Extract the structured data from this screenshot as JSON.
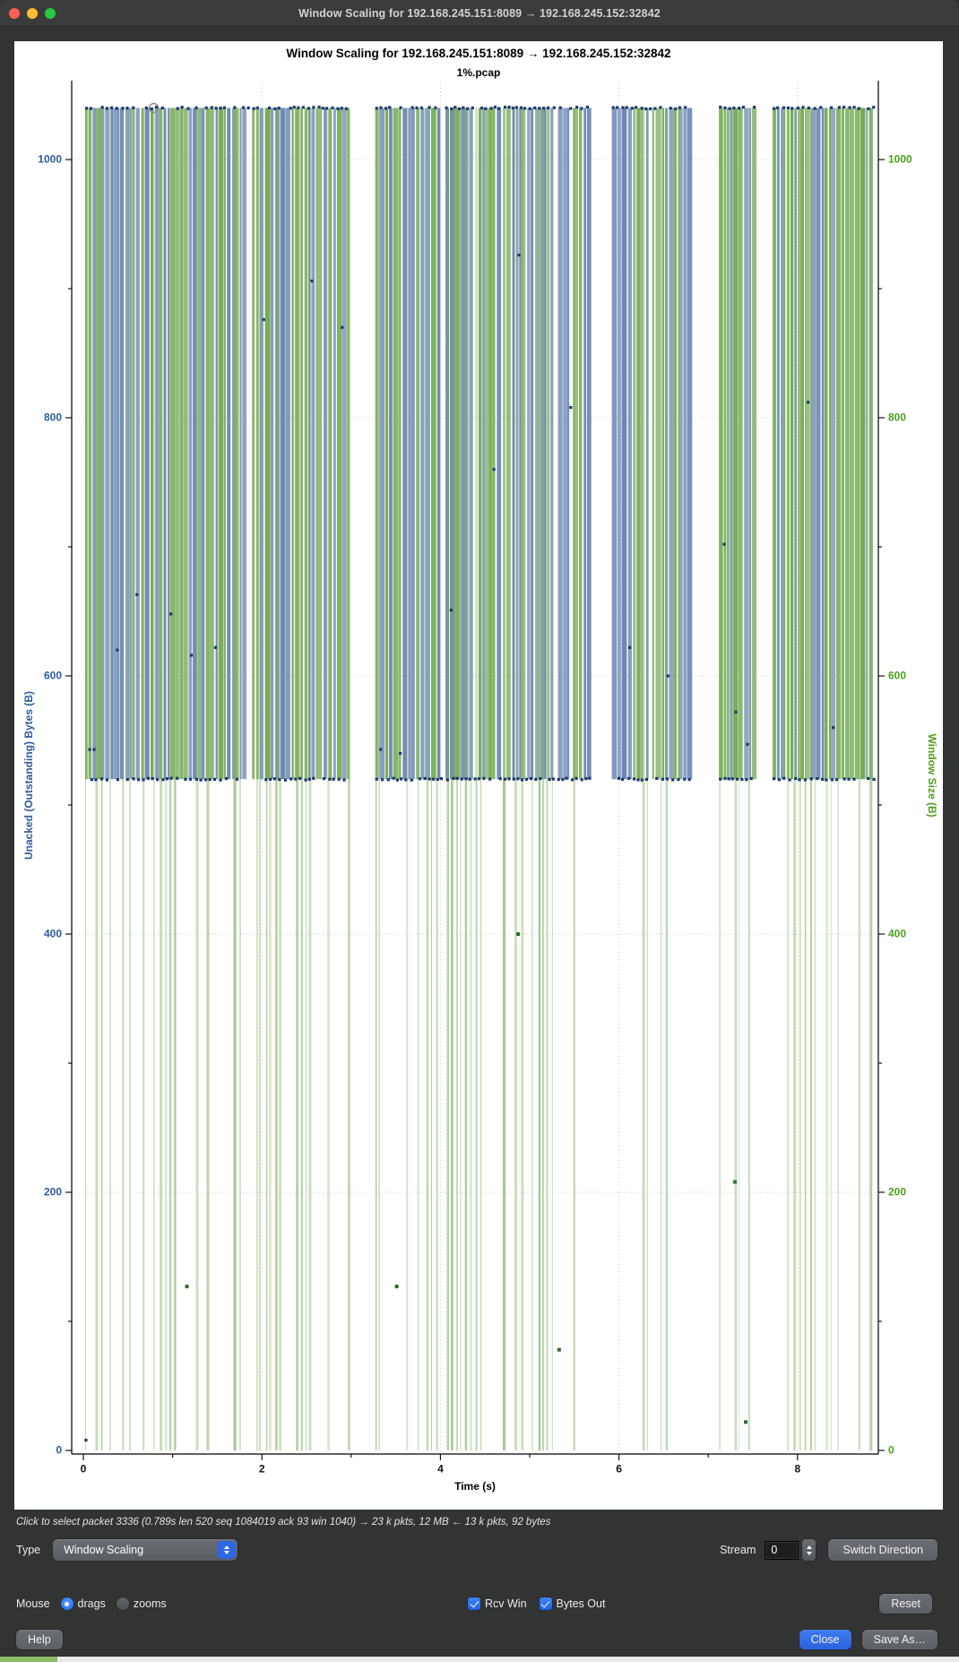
{
  "window": {
    "title": "Window Scaling for 192.168.245.151:8089 → 192.168.245.152:32842"
  },
  "chart": {
    "title": "Window Scaling for 192.168.245.151:8089 → 192.168.245.152:32842",
    "subtitle": "1%.pcap",
    "x_axis": {
      "label": "Time (s)",
      "major_ticks": [
        0,
        2,
        4,
        6,
        8
      ],
      "minor_ticks": [
        1,
        3,
        5,
        7
      ],
      "xlim": [
        0,
        8.9
      ]
    },
    "y_left": {
      "label": "Unacked (Outstanding) Bytes (B)",
      "text_color": "#2c5c9e",
      "major_ticks": [
        0,
        200,
        400,
        600,
        800,
        1000
      ],
      "minor_ticks": [
        100,
        300,
        500,
        700,
        900
      ],
      "ylim": [
        0,
        1061
      ]
    },
    "y_right": {
      "label": "Window Size (B)",
      "text_color": "#4b9e1e",
      "major_ticks": [
        0,
        200,
        400,
        600,
        800,
        1000
      ],
      "minor_ticks": [
        100,
        300,
        500,
        700,
        900
      ],
      "ylim": [
        0,
        1061
      ]
    }
  },
  "chart_data": {
    "type": "vlines-packet-trace",
    "series": [
      {
        "name": "Rcv Win",
        "color": "#74aa54",
        "kind": "full-height-vlines",
        "span": [
          0,
          1040
        ]
      },
      {
        "name": "Bytes Out",
        "color": "#6d88b4",
        "kind": "band-vlines",
        "span": [
          520,
          1040
        ]
      }
    ],
    "levels": {
      "win_top": 1040,
      "unacked_high": 1040,
      "unacked_low": 520
    },
    "marker_rows": [
      1040,
      520
    ],
    "dense_segments_s": [
      [
        0.02,
        2.97
      ],
      [
        3.27,
        5.67
      ],
      [
        5.92,
        6.78
      ],
      [
        7.12,
        7.5
      ],
      [
        7.72,
        8.85
      ]
    ],
    "band_density": [
      0.93,
      0.95,
      0.92,
      0.9,
      0.93
    ],
    "green_density": [
      0.5,
      0.62,
      0.45,
      0.42,
      0.55
    ],
    "scatter_unacked": [
      [
        0.03,
        8
      ],
      [
        0.07,
        543
      ],
      [
        0.12,
        543
      ],
      [
        0.38,
        620
      ],
      [
        0.6,
        663
      ],
      [
        0.98,
        648
      ],
      [
        1.21,
        616
      ],
      [
        1.48,
        622
      ],
      [
        2.02,
        876
      ],
      [
        2.56,
        906
      ],
      [
        2.9,
        870
      ],
      [
        3.33,
        543
      ],
      [
        3.55,
        540
      ],
      [
        4.12,
        651
      ],
      [
        4.6,
        760
      ],
      [
        4.88,
        926
      ],
      [
        5.46,
        808
      ],
      [
        6.12,
        622
      ],
      [
        6.55,
        600
      ],
      [
        7.18,
        702
      ],
      [
        7.31,
        572
      ],
      [
        7.44,
        547
      ],
      [
        8.12,
        812
      ],
      [
        8.4,
        560
      ]
    ],
    "scatter_win": [
      [
        1.16,
        127
      ],
      [
        3.51,
        127
      ],
      [
        4.87,
        400
      ],
      [
        5.33,
        78
      ],
      [
        7.3,
        208
      ],
      [
        7.42,
        22
      ]
    ],
    "selected_point": {
      "t": 0.789,
      "v": 1040
    },
    "colors": {
      "rcv_win_line": "#74aa54",
      "bytes_out_line": "#6d88b4",
      "unacked_marker": "#1d3a6a",
      "win_marker": "#2f6b33",
      "grid": "#9aa79a",
      "axis": "#000000",
      "selected_ring": "#8a8a8a"
    },
    "seed": 1337
  },
  "status_bar": {
    "text": "Click to select packet 3336 (0.789s len 520 seq 1084019 ack 93 win 1040) → 23 k pkts, 12 MB ← 13 k pkts, 92 bytes"
  },
  "controls": {
    "type_label": "Type",
    "type_value": "Window Scaling",
    "stream_label": "Stream",
    "stream_value": "0",
    "switch_direction": "Switch Direction",
    "mouse_label": "Mouse",
    "mouse_selected": "drags",
    "drags_label": "drags",
    "zooms_label": "zooms",
    "rcv_win_label": "Rcv Win",
    "rcv_win_checked": true,
    "bytes_out_label": "Bytes Out",
    "bytes_out_checked": true,
    "reset": "Reset",
    "help": "Help",
    "close": "Close",
    "save_as": "Save As…"
  }
}
